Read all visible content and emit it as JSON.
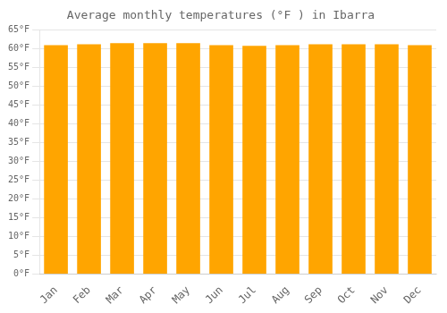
{
  "chart_data": {
    "type": "bar",
    "title": "Average monthly temperatures (°F ) in Ibarra",
    "categories": [
      "Jan",
      "Feb",
      "Mar",
      "Apr",
      "May",
      "Jun",
      "Jul",
      "Aug",
      "Sep",
      "Oct",
      "Nov",
      "Dec"
    ],
    "values": [
      61.0,
      61.2,
      61.5,
      61.5,
      61.5,
      61.0,
      60.8,
      61.0,
      61.2,
      61.2,
      61.2,
      61.0
    ],
    "color": "#FFA500",
    "ylim": [
      0,
      65
    ],
    "yticks": [
      {
        "value": 0,
        "label": "0°F"
      },
      {
        "value": 5,
        "label": "5°F"
      },
      {
        "value": 10,
        "label": "10°F"
      },
      {
        "value": 15,
        "label": "15°F"
      },
      {
        "value": 20,
        "label": "20°F"
      },
      {
        "value": 25,
        "label": "25°F"
      },
      {
        "value": 30,
        "label": "30°F"
      },
      {
        "value": 35,
        "label": "35°F"
      },
      {
        "value": 40,
        "label": "40°F"
      },
      {
        "value": 45,
        "label": "45°F"
      },
      {
        "value": 50,
        "label": "50°F"
      },
      {
        "value": 55,
        "label": "55°F"
      },
      {
        "value": 60,
        "label": "60°F"
      },
      {
        "value": 65,
        "label": "65°F"
      }
    ],
    "grid": true
  }
}
